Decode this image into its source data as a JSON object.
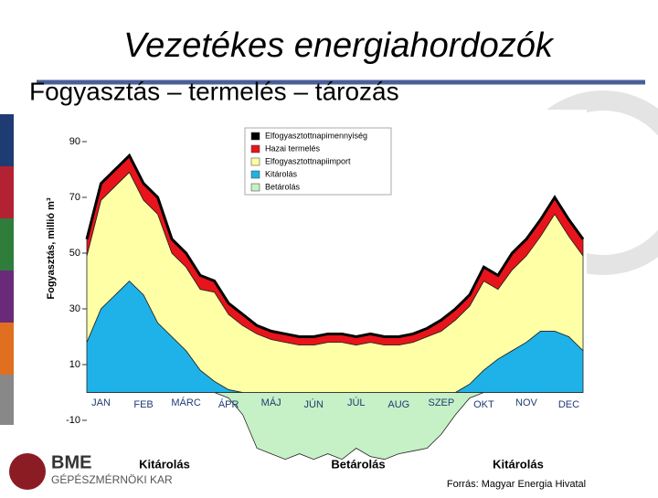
{
  "header": {
    "title": "Vezetékes energiahordozók",
    "subtitle": "Fogyasztás – termelés – tározás"
  },
  "logo": {
    "mark": "BME",
    "text": "GÉPÉSZMÉRNÖKI KAR"
  },
  "source": "Forrás: Magyar Energia Hivatal",
  "chart_data": {
    "type": "stacked-area",
    "y_label": "Fogyasztás, millió m³",
    "categories": [
      null,
      "JAN",
      null,
      null,
      "FEB",
      null,
      null,
      "MÁRC",
      null,
      null,
      "ÁPR",
      null,
      null,
      "MÁJ",
      null,
      null,
      "JÚN",
      null,
      null,
      "JÚL",
      null,
      null,
      "AUG",
      null,
      null,
      "SZEP",
      null,
      null,
      "OKT",
      null,
      null,
      "NOV",
      null,
      null,
      "DEC",
      null
    ],
    "series": [
      {
        "name": "Elfogyasztottnapimennyiség",
        "color": "#000000",
        "type": "line",
        "values": [
          55,
          75,
          80,
          85,
          75,
          70,
          55,
          50,
          42,
          40,
          32,
          28,
          24,
          22,
          21,
          20,
          20,
          21,
          21,
          20,
          21,
          20,
          20,
          21,
          23,
          26,
          30,
          35,
          45,
          42,
          50,
          55,
          62,
          70,
          62,
          55
        ]
      },
      {
        "name": "Hazai termelés",
        "color": "#e8141b",
        "values": [
          6,
          6,
          6,
          6,
          6,
          6,
          5,
          5,
          5,
          4,
          4,
          4,
          3,
          3,
          3,
          3,
          3,
          3,
          3,
          3,
          3,
          3,
          3,
          3,
          3,
          4,
          4,
          4,
          5,
          5,
          6,
          6,
          6,
          6,
          6,
          6
        ]
      },
      {
        "name": "Elfogyasztottnapiimport",
        "color": "#ffffa6",
        "values": [
          31,
          39,
          39,
          39,
          34,
          39,
          30,
          30,
          29,
          32,
          27,
          24,
          21,
          19,
          18,
          17,
          17,
          18,
          18,
          17,
          18,
          17,
          17,
          18,
          20,
          22,
          26,
          28,
          32,
          25,
          29,
          31,
          34,
          42,
          36,
          34
        ]
      },
      {
        "name": "Kitárolás",
        "color": "#1fb2e8",
        "values": [
          18,
          30,
          35,
          40,
          35,
          25,
          20,
          15,
          8,
          4,
          1,
          0,
          0,
          0,
          0,
          0,
          0,
          0,
          0,
          0,
          0,
          0,
          0,
          0,
          0,
          0,
          0,
          3,
          8,
          12,
          15,
          18,
          22,
          22,
          20,
          15
        ]
      },
      {
        "name": "Betárolás",
        "color": "#c6f0c6",
        "values": [
          0,
          0,
          0,
          0,
          0,
          0,
          0,
          0,
          0,
          0,
          -2,
          -8,
          -20,
          -22,
          -24,
          -22,
          -24,
          -22,
          -24,
          -20,
          -23,
          -24,
          -22,
          -21,
          -20,
          -15,
          -8,
          -2,
          0,
          0,
          0,
          0,
          0,
          0,
          0,
          0
        ]
      }
    ],
    "annotations": [
      "Kitárolás",
      "Betárolás",
      "Kitárolás"
    ],
    "ylim": [
      -30,
      100
    ],
    "yticks": [
      -10,
      10,
      30,
      50,
      70,
      90
    ],
    "legend": "top-left"
  }
}
